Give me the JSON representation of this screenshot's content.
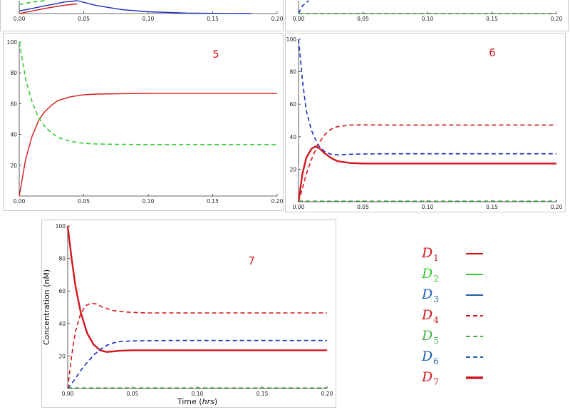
{
  "colors": {
    "red": "#d3171c",
    "green": "#33cc33",
    "blue": "#1a2fc0",
    "dark_green": "#2e8b2e",
    "legend_blue": "#1f5fa5",
    "legend_green": "#49b048"
  },
  "chart_data": [
    {
      "panel": "top-left",
      "type": "line",
      "title": "",
      "xlim": [
        0,
        0.2
      ],
      "x_ticks": [
        "0.00",
        "0.05",
        "0.10",
        "0.15",
        "0.20"
      ],
      "series": [
        {
          "color": "blue",
          "style": "solid",
          "x": [
            0.0,
            0.02,
            0.035,
            0.045,
            0.06,
            0.08,
            0.1,
            0.13,
            0.16,
            0.18
          ],
          "y": [
            20,
            60,
            90,
            100,
            62,
            30,
            14,
            4,
            1,
            0
          ]
        },
        {
          "color": "red",
          "style": "solid",
          "x": [
            0.0,
            0.02,
            0.035,
            0.045
          ],
          "y": [
            0,
            40,
            65,
            75
          ]
        },
        {
          "color": "green",
          "style": "dashed",
          "x": [
            0.0,
            0.01,
            0.02
          ],
          "y": [
            70,
            90,
            100
          ]
        }
      ]
    },
    {
      "panel": "top-right",
      "type": "line",
      "title": "",
      "xlim": [
        0,
        0.2
      ],
      "x_ticks": [
        "0.00",
        "0.05",
        "0.10",
        "0.15",
        "0.20"
      ],
      "series": [
        {
          "color": "blue",
          "style": "dashed",
          "x": [
            0.0,
            0.003,
            0.008
          ],
          "y": [
            0,
            60,
            100
          ]
        },
        {
          "color": "dark_green",
          "style": "dashed",
          "x": [
            0.0,
            0.2
          ],
          "y": [
            0,
            0
          ]
        }
      ]
    },
    {
      "panel": "middle-left",
      "type": "line",
      "title": "5",
      "xlim": [
        0,
        0.2
      ],
      "ylim": [
        0,
        100
      ],
      "x_ticks": [
        "0.00",
        "0.05",
        "0.10",
        "0.15",
        "0.20"
      ],
      "y_ticks": [
        "20",
        "40",
        "60",
        "80",
        "100"
      ],
      "series": [
        {
          "color": "red",
          "style": "solid",
          "x": [
            0.0,
            0.005,
            0.01,
            0.015,
            0.02,
            0.025,
            0.03,
            0.04,
            0.05,
            0.06,
            0.08,
            0.1,
            0.15,
            0.2
          ],
          "y": [
            0,
            24,
            39,
            49,
            55,
            59,
            62,
            64.5,
            65.8,
            66.2,
            66.5,
            66.6,
            66.6,
            66.6
          ]
        },
        {
          "color": "green",
          "style": "dashed",
          "x": [
            0.0,
            0.005,
            0.01,
            0.015,
            0.02,
            0.025,
            0.03,
            0.04,
            0.05,
            0.06,
            0.08,
            0.1,
            0.15,
            0.2
          ],
          "y": [
            100,
            76,
            61,
            51,
            45,
            41,
            38,
            35.5,
            34.2,
            33.8,
            33.5,
            33.4,
            33.4,
            33.4
          ]
        }
      ]
    },
    {
      "panel": "middle-right",
      "type": "line",
      "title": "6",
      "xlim": [
        0,
        0.2
      ],
      "ylim": [
        0,
        100
      ],
      "x_ticks": [
        "0.00",
        "0.05",
        "0.10",
        "0.15",
        "0.20"
      ],
      "y_ticks": [
        "20",
        "40",
        "60",
        "80",
        "100"
      ],
      "series": [
        {
          "color": "blue",
          "style": "dashed",
          "x": [
            0.0,
            0.003,
            0.006,
            0.01,
            0.015,
            0.02,
            0.025,
            0.03,
            0.04,
            0.05,
            0.07,
            0.1,
            0.15,
            0.2
          ],
          "y": [
            100,
            75,
            56,
            44,
            35,
            31,
            29.2,
            28.8,
            29.2,
            29.4,
            29.5,
            29.5,
            29.5,
            29.5
          ]
        },
        {
          "color": "red",
          "style": "dashed",
          "x": [
            0.0,
            0.003,
            0.006,
            0.01,
            0.015,
            0.02,
            0.025,
            0.03,
            0.04,
            0.05,
            0.07,
            0.1,
            0.15,
            0.2
          ],
          "y": [
            0,
            8,
            17,
            26,
            35,
            41,
            44.5,
            46.2,
            47.2,
            47.3,
            47.2,
            47.2,
            47.2,
            47.2
          ]
        },
        {
          "color": "red",
          "style": "solid-thick",
          "x": [
            0.0,
            0.003,
            0.006,
            0.01,
            0.013,
            0.016,
            0.02,
            0.025,
            0.03,
            0.04,
            0.05,
            0.07,
            0.1,
            0.15,
            0.2
          ],
          "y": [
            0,
            17,
            27,
            32.5,
            34,
            33,
            30,
            27,
            25,
            23.8,
            23.5,
            23.5,
            23.5,
            23.5,
            23.5
          ]
        },
        {
          "color": "dark_green",
          "style": "dashed",
          "x": [
            0.0,
            0.2
          ],
          "y": [
            0.3,
            0.3
          ]
        }
      ]
    },
    {
      "panel": "bottom",
      "type": "line",
      "title": "7",
      "xlabel_prefix": "Time (",
      "xlabel_unit": "hrs",
      "xlabel_suffix": ")",
      "ylabel": "Concentration (nM)",
      "xlim": [
        0,
        0.2
      ],
      "ylim": [
        0,
        100
      ],
      "x_ticks": [
        "0.00",
        "0.05",
        "0.10",
        "0.15",
        "0.20"
      ],
      "y_ticks": [
        "20",
        "40",
        "60",
        "80",
        "100"
      ],
      "series": [
        {
          "color": "red",
          "style": "solid-thick",
          "x": [
            0.0,
            0.003,
            0.006,
            0.01,
            0.015,
            0.02,
            0.025,
            0.03,
            0.035,
            0.04,
            0.05,
            0.07,
            0.1,
            0.15,
            0.2
          ],
          "y": [
            100,
            80,
            63,
            47,
            34,
            27,
            23.5,
            22.5,
            22.8,
            23.2,
            23.5,
            23.5,
            23.5,
            23.5,
            23.5
          ]
        },
        {
          "color": "red",
          "style": "dashed",
          "x": [
            0.0,
            0.003,
            0.006,
            0.01,
            0.014,
            0.018,
            0.022,
            0.027,
            0.035,
            0.045,
            0.06,
            0.1,
            0.15,
            0.2
          ],
          "y": [
            0,
            20,
            35,
            46,
            51,
            52.5,
            52,
            50,
            48,
            47,
            46.5,
            46.5,
            46.5,
            46.5
          ]
        },
        {
          "color": "blue",
          "style": "dashed",
          "x": [
            0.0,
            0.005,
            0.01,
            0.015,
            0.02,
            0.025,
            0.03,
            0.035,
            0.04,
            0.05,
            0.06,
            0.08,
            0.1,
            0.15,
            0.2
          ],
          "y": [
            0,
            5,
            11,
            16,
            20.5,
            24,
            26.5,
            28,
            28.8,
            29.3,
            29.4,
            29.5,
            29.5,
            29.5,
            29.5
          ]
        },
        {
          "color": "dark_green",
          "style": "dashed",
          "x": [
            0.0,
            0.2
          ],
          "y": [
            0.3,
            0.3
          ]
        }
      ]
    }
  ],
  "legend": [
    {
      "letter": "D",
      "sub": "1",
      "color": "red",
      "style": "solid"
    },
    {
      "letter": "D",
      "sub": "2",
      "color": "green",
      "style": "solid"
    },
    {
      "letter": "D",
      "sub": "3",
      "color": "legend_blue",
      "style": "solid"
    },
    {
      "letter": "D",
      "sub": "4",
      "color": "red",
      "style": "dashed"
    },
    {
      "letter": "D",
      "sub": "5",
      "color": "legend_green",
      "style": "dashed"
    },
    {
      "letter": "D",
      "sub": "6",
      "color": "legend_blue",
      "style": "dashed"
    },
    {
      "letter": "D",
      "sub": "7",
      "color": "red",
      "style": "solid-thick"
    }
  ]
}
